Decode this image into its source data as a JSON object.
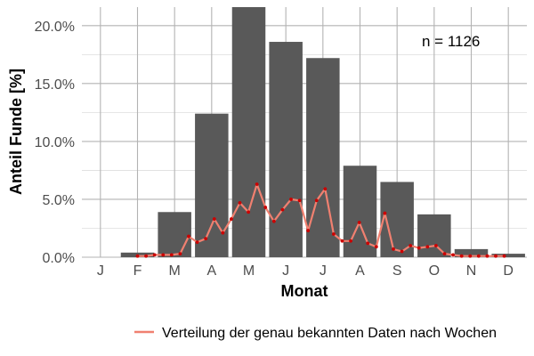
{
  "chart_data": {
    "type": "bar",
    "xlabel": "Monat",
    "ylabel": "Anteil Funde [%]",
    "categories": [
      "J",
      "F",
      "M",
      "A",
      "M",
      "J",
      "J",
      "A",
      "S",
      "O",
      "N",
      "D"
    ],
    "values": [
      0.0,
      0.4,
      3.9,
      12.4,
      21.6,
      18.6,
      17.2,
      7.9,
      6.5,
      3.7,
      0.7,
      0.3
    ],
    "y_ticks": [
      "0.0%",
      "5.0%",
      "10.0%",
      "15.0%",
      "20.0%"
    ],
    "y_tick_values": [
      0,
      5,
      10,
      15,
      20
    ],
    "ylim": [
      0,
      21.6
    ],
    "grid": true,
    "annotation": "n = 1126",
    "line_series": {
      "name": "Verteilung der genau bekannten Daten nach Wochen",
      "color": "#f08070",
      "point_color": "#cc0000",
      "x": [
        2.0,
        2.23,
        2.46,
        2.69,
        2.92,
        3.15,
        3.38,
        3.61,
        3.84,
        4.07,
        4.3,
        4.53,
        4.76,
        4.99,
        5.22,
        5.45,
        5.68,
        5.91,
        6.14,
        6.37,
        6.6,
        6.83,
        7.06,
        7.29,
        7.52,
        7.75,
        7.98,
        8.21,
        8.44,
        8.67,
        8.9,
        9.13,
        9.36,
        9.59,
        9.82,
        10.05,
        10.28,
        10.51,
        10.74,
        10.97,
        11.2,
        11.43,
        11.66,
        11.89
      ],
      "y": [
        0.1,
        0.1,
        0.2,
        0.2,
        0.2,
        0.3,
        1.8,
        1.3,
        1.6,
        3.3,
        2.1,
        3.3,
        4.7,
        3.9,
        6.3,
        4.3,
        3.1,
        4.1,
        5.0,
        4.9,
        2.3,
        4.9,
        5.9,
        2.0,
        1.4,
        1.4,
        3.0,
        1.2,
        0.9,
        3.8,
        0.7,
        0.5,
        1.0,
        0.8,
        0.9,
        1.0,
        0.3,
        0.2,
        0.1,
        0.1,
        0.1,
        0.1,
        0.1,
        0.1
      ]
    },
    "legend_position": "bottom",
    "colors": {
      "bars": "#595959",
      "grid": "#b3b3b3"
    }
  }
}
